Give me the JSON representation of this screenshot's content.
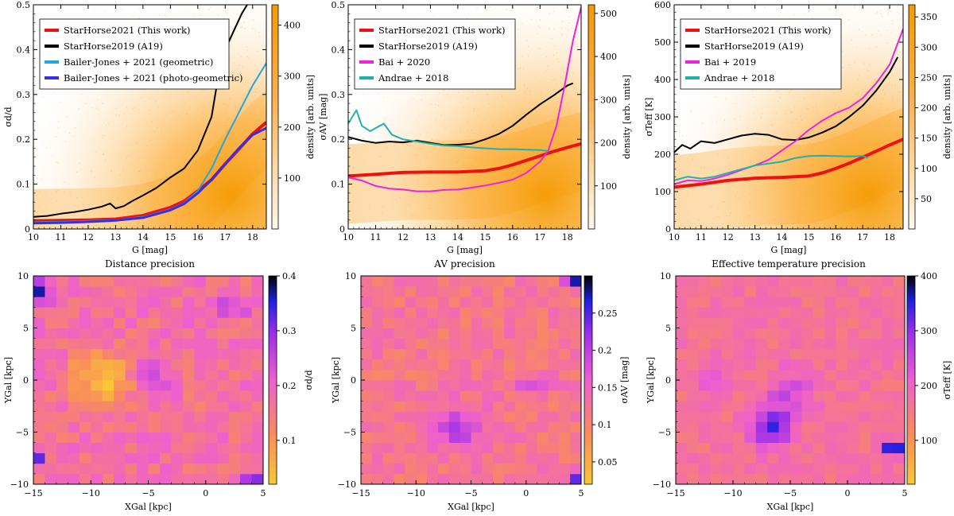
{
  "chart_data": [
    {
      "type": "line",
      "title": "Distance precision",
      "xlabel": "G [mag]",
      "ylabel": "σd/d",
      "xlim": [
        10,
        18.5
      ],
      "ylim": [
        0,
        0.5
      ],
      "xticks": [
        10,
        11,
        12,
        13,
        14,
        15,
        16,
        17,
        18
      ],
      "yticks": [
        0,
        0.1,
        0.2,
        0.3,
        0.4,
        0.5
      ],
      "colorbar": {
        "label": "density [arb. units]",
        "range": [
          0,
          440
        ],
        "ticks": [
          100,
          200,
          300,
          400
        ]
      },
      "legend_position": "top-left",
      "series": [
        {
          "name": "StarHorse2021 (This work)",
          "color": "#ee1111",
          "width": 4,
          "x": [
            10,
            11,
            12,
            13,
            14,
            15,
            15.5,
            16,
            16.5,
            17,
            17.5,
            18,
            18.5
          ],
          "y": [
            0.018,
            0.019,
            0.02,
            0.022,
            0.03,
            0.048,
            0.062,
            0.085,
            0.11,
            0.145,
            0.178,
            0.212,
            0.238
          ]
        },
        {
          "name": "StarHorse2019 (A19)",
          "color": "#000000",
          "width": 2,
          "x": [
            10,
            10.5,
            11,
            11.5,
            12,
            12.5,
            12.8,
            13,
            13.3,
            13.6,
            14,
            14.5,
            15,
            15.5,
            16,
            16.5,
            16.8,
            17,
            17.3,
            17.6,
            17.8
          ],
          "y": [
            0.027,
            0.029,
            0.034,
            0.038,
            0.043,
            0.05,
            0.057,
            0.046,
            0.051,
            0.062,
            0.075,
            0.092,
            0.115,
            0.135,
            0.175,
            0.25,
            0.36,
            0.4,
            0.44,
            0.48,
            0.5
          ]
        },
        {
          "name": "Bailer-Jones + 2021 (geometric)",
          "color": "#22a6dd",
          "width": 2,
          "x": [
            10,
            11,
            12,
            13,
            14,
            15,
            15.5,
            16,
            16.5,
            17,
            17.5,
            18,
            18.5
          ],
          "y": [
            0.015,
            0.016,
            0.018,
            0.02,
            0.027,
            0.044,
            0.058,
            0.085,
            0.135,
            0.2,
            0.26,
            0.32,
            0.37
          ]
        },
        {
          "name": "Bailer-Jones + 2021 (photo-geometric)",
          "color": "#3a2ee0",
          "width": 3,
          "x": [
            10,
            11,
            12,
            13,
            14,
            15,
            15.5,
            16,
            16.5,
            17,
            17.5,
            18,
            18.5
          ],
          "y": [
            0.013,
            0.014,
            0.016,
            0.019,
            0.025,
            0.042,
            0.056,
            0.08,
            0.11,
            0.145,
            0.18,
            0.21,
            0.225
          ]
        }
      ]
    },
    {
      "type": "line",
      "title": "AV precision",
      "xlabel": "G [mag]",
      "ylabel": "σAV [mag]",
      "xlim": [
        10,
        18.5
      ],
      "ylim": [
        0,
        0.5
      ],
      "xticks": [
        10,
        11,
        12,
        13,
        14,
        15,
        16,
        17,
        18
      ],
      "yticks": [
        0,
        0.1,
        0.2,
        0.3,
        0.4,
        0.5
      ],
      "colorbar": {
        "label": "density [arb. units]",
        "range": [
          0,
          520
        ],
        "ticks": [
          100,
          200,
          300,
          400,
          500
        ]
      },
      "legend_position": "top-left",
      "series": [
        {
          "name": "StarHorse2021 (This work)",
          "color": "#ee1111",
          "width": 4,
          "x": [
            10,
            11,
            12,
            13,
            14,
            15,
            15.5,
            16,
            16.5,
            17,
            17.5,
            18,
            18.5
          ],
          "y": [
            0.118,
            0.122,
            0.126,
            0.127,
            0.127,
            0.13,
            0.135,
            0.143,
            0.153,
            0.163,
            0.173,
            0.182,
            0.19
          ]
        },
        {
          "name": "StarHorse2019 (A19)",
          "color": "#000000",
          "width": 2,
          "x": [
            10,
            10.5,
            11,
            11.5,
            12,
            12.5,
            13,
            13.5,
            14,
            14.5,
            15,
            15.5,
            16,
            16.5,
            17,
            17.5,
            18,
            18.2
          ],
          "y": [
            0.205,
            0.197,
            0.192,
            0.195,
            0.193,
            0.197,
            0.192,
            0.187,
            0.188,
            0.19,
            0.2,
            0.212,
            0.23,
            0.255,
            0.278,
            0.298,
            0.32,
            0.325
          ]
        },
        {
          "name": "Bai + 2020",
          "color": "#ee22dd",
          "width": 2,
          "x": [
            10,
            10.5,
            11,
            11.5,
            12,
            12.5,
            13,
            13.5,
            14,
            14.5,
            15,
            15.5,
            16,
            16.5,
            17,
            17.3,
            17.6,
            17.9,
            18.2,
            18.5
          ],
          "y": [
            0.115,
            0.108,
            0.096,
            0.09,
            0.088,
            0.084,
            0.084,
            0.087,
            0.088,
            0.092,
            0.097,
            0.103,
            0.11,
            0.125,
            0.15,
            0.175,
            0.23,
            0.32,
            0.42,
            0.495
          ]
        },
        {
          "name": "Andrae + 2018",
          "color": "#20b2aa",
          "width": 2,
          "x": [
            10,
            10.3,
            10.5,
            10.8,
            11,
            11.3,
            11.6,
            12,
            12.5,
            13,
            13.5,
            14,
            14.5,
            15,
            15.5,
            16,
            16.5,
            17,
            17.3
          ],
          "y": [
            0.235,
            0.265,
            0.23,
            0.218,
            0.225,
            0.235,
            0.21,
            0.2,
            0.195,
            0.19,
            0.186,
            0.185,
            0.182,
            0.18,
            0.178,
            0.178,
            0.177,
            0.176,
            0.174
          ]
        }
      ]
    },
    {
      "type": "line",
      "title": "Effective temperature precision",
      "xlabel": "G [mag]",
      "ylabel": "σTeff [K]",
      "xlim": [
        10,
        18.5
      ],
      "ylim": [
        0,
        600
      ],
      "xticks": [
        10,
        11,
        12,
        13,
        14,
        15,
        16,
        17,
        18
      ],
      "yticks": [
        0,
        100,
        200,
        300,
        400,
        500,
        600
      ],
      "colorbar": {
        "label": "density [arb. units]",
        "range": [
          0,
          370
        ],
        "ticks": [
          50,
          100,
          150,
          200,
          250,
          300,
          350
        ]
      },
      "legend_position": "top-left",
      "series": [
        {
          "name": "StarHorse2021 (This work)",
          "color": "#ee1111",
          "width": 4,
          "x": [
            10,
            11,
            12,
            13,
            14,
            15,
            15.5,
            16,
            16.5,
            17,
            17.5,
            18,
            18.5
          ],
          "y": [
            112,
            120,
            130,
            136,
            138,
            142,
            150,
            162,
            176,
            192,
            208,
            225,
            240
          ]
        },
        {
          "name": "StarHorse2019 (A19)",
          "color": "#000000",
          "width": 2,
          "x": [
            10,
            10.3,
            10.6,
            11,
            11.5,
            12,
            12.5,
            13,
            13.5,
            14,
            14.5,
            15,
            15.5,
            16,
            16.5,
            17,
            17.5,
            18,
            18.3
          ],
          "y": [
            205,
            225,
            215,
            235,
            230,
            240,
            250,
            255,
            252,
            240,
            238,
            245,
            258,
            275,
            300,
            330,
            370,
            420,
            460
          ]
        },
        {
          "name": "Bai + 2019",
          "color": "#ee22dd",
          "width": 2,
          "x": [
            10,
            10.5,
            11,
            11.5,
            12,
            12.5,
            13,
            13.5,
            14,
            14.5,
            15,
            15.5,
            16,
            16.5,
            17,
            17.5,
            18,
            18.5
          ],
          "y": [
            120,
            130,
            128,
            135,
            145,
            158,
            170,
            185,
            210,
            235,
            265,
            290,
            310,
            325,
            350,
            390,
            440,
            535
          ]
        },
        {
          "name": "Andrae + 2018",
          "color": "#20b2aa",
          "width": 2,
          "x": [
            10,
            10.5,
            11,
            11.5,
            12,
            12.5,
            13,
            13.5,
            14,
            14.5,
            15,
            15.5,
            16,
            16.5,
            17,
            17.2
          ],
          "y": [
            130,
            140,
            135,
            140,
            150,
            160,
            170,
            175,
            180,
            190,
            195,
            196,
            195,
            194,
            195,
            190
          ]
        }
      ]
    },
    {
      "type": "heatmap",
      "xlabel": "XGal [kpc]",
      "ylabel": "YGal [kpc]",
      "xlim": [
        -15,
        5
      ],
      "ylim": [
        -10,
        10
      ],
      "xticks": [
        -15,
        -10,
        -5,
        0,
        5
      ],
      "yticks": [
        -10,
        -5,
        0,
        5,
        10
      ],
      "colorbar": {
        "label": "σd/d",
        "range": [
          0.02,
          0.4
        ],
        "ticks": [
          0.1,
          0.2,
          0.3,
          0.4
        ]
      },
      "base": 0.17,
      "noise": 0.04,
      "blobs": [
        {
          "x": -9,
          "y": 0,
          "amp": -0.13,
          "sx": 1.8,
          "sy": 1.8
        },
        {
          "x": -4.5,
          "y": 0,
          "amp": 0.1,
          "sx": 0.9,
          "sy": 1.6
        },
        {
          "x": 4,
          "y": -9.5,
          "amp": 0.22,
          "sx": 0.5,
          "sy": 0.5
        },
        {
          "x": -14.5,
          "y": 8.5,
          "amp": 0.18,
          "sx": 0.6,
          "sy": 0.9
        },
        {
          "x": 2.5,
          "y": 7,
          "amp": 0.12,
          "sx": 1.2,
          "sy": 0.6
        },
        {
          "x": -14.5,
          "y": -7.5,
          "amp": 0.12,
          "sx": 0.5,
          "sy": 0.7
        }
      ]
    },
    {
      "type": "heatmap",
      "xlabel": "XGal [kpc]",
      "ylabel": "YGal [kpc]",
      "xlim": [
        -15,
        5
      ],
      "ylim": [
        -10,
        10
      ],
      "xticks": [
        -15,
        -10,
        -5,
        0,
        5
      ],
      "yticks": [
        -10,
        -5,
        0,
        5,
        10
      ],
      "colorbar": {
        "label": "σAV [mag]",
        "range": [
          0.02,
          0.3
        ],
        "ticks": [
          0.05,
          0.1,
          0.15,
          0.2,
          0.25
        ]
      },
      "base": 0.12,
      "noise": 0.025,
      "blobs": [
        {
          "x": -6,
          "y": -4.5,
          "amp": 0.08,
          "sx": 1.6,
          "sy": 1.6
        },
        {
          "x": 0.5,
          "y": -0.5,
          "amp": 0.06,
          "sx": 1.2,
          "sy": 0.8
        },
        {
          "x": 4.5,
          "y": 9.5,
          "amp": 0.16,
          "sx": 0.6,
          "sy": 0.6
        },
        {
          "x": 4.5,
          "y": -9.5,
          "amp": 0.12,
          "sx": 0.5,
          "sy": 0.5
        }
      ]
    },
    {
      "type": "heatmap",
      "xlabel": "XGal [kpc]",
      "ylabel": "YGal [kpc]",
      "xlim": [
        -15,
        5
      ],
      "ylim": [
        -10,
        10
      ],
      "xticks": [
        -15,
        -10,
        -5,
        0,
        5
      ],
      "yticks": [
        -10,
        -5,
        0,
        5,
        10
      ],
      "colorbar": {
        "label": "σTeff [K]",
        "range": [
          20,
          400
        ],
        "ticks": [
          100,
          200,
          300,
          400
        ]
      },
      "base": 165,
      "noise": 25,
      "blobs": [
        {
          "x": -6.5,
          "y": -4.5,
          "amp": 180,
          "sx": 1.2,
          "sy": 1.3
        },
        {
          "x": -5,
          "y": -1,
          "amp": 70,
          "sx": 1.5,
          "sy": 1.5
        },
        {
          "x": -12,
          "y": 0.5,
          "amp": 50,
          "sx": 1,
          "sy": 1
        },
        {
          "x": 4,
          "y": -6.5,
          "amp": 230,
          "sx": 0.8,
          "sy": 0.4
        }
      ]
    }
  ]
}
